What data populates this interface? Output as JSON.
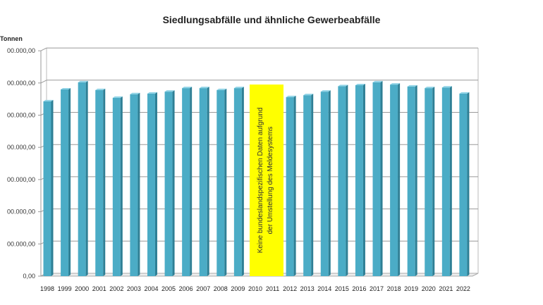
{
  "chart_data": {
    "type": "bar",
    "title": "Siedlungsabfälle und ähnliche Gewerbeabfälle",
    "ylabel": "Tonnen",
    "xlabel": "",
    "categories": [
      "1998",
      "1999",
      "2000",
      "2001",
      "2002",
      "2003",
      "2004",
      "2005",
      "2006",
      "2007",
      "2008",
      "2009",
      "2010",
      "2011",
      "2012",
      "2013",
      "2014",
      "2015",
      "2016",
      "2017",
      "2018",
      "2019",
      "2020",
      "2021",
      "2022"
    ],
    "values_in_gridline_units": [
      5.43,
      5.8,
      6.02,
      5.78,
      5.54,
      5.65,
      5.67,
      5.73,
      5.84,
      5.84,
      5.78,
      5.84,
      null,
      null,
      5.56,
      5.62,
      5.73,
      5.9,
      5.93,
      6.02,
      5.95,
      5.89,
      5.84,
      5.86,
      5.67
    ],
    "ylim": [
      0,
      7
    ],
    "y_tick_labels": [
      "0,00",
      "00.000,00",
      "00.000,00",
      "00.000,00",
      "00.000,00",
      "00.000,00",
      "00.000,00",
      "00.000,00"
    ],
    "grid": true,
    "legend": "none",
    "bar_color": "#4bacc6",
    "annotation": {
      "text": "Keine bundeslandspezifischen Daten aufgrund der Umstellung des Meldesystems",
      "line1": "Keine bundeslandspezifischen Daten aufgrund",
      "line2": "der Umstellung des Meldesystems",
      "color": "#ffff00",
      "covers": [
        "2010",
        "2011"
      ]
    }
  }
}
